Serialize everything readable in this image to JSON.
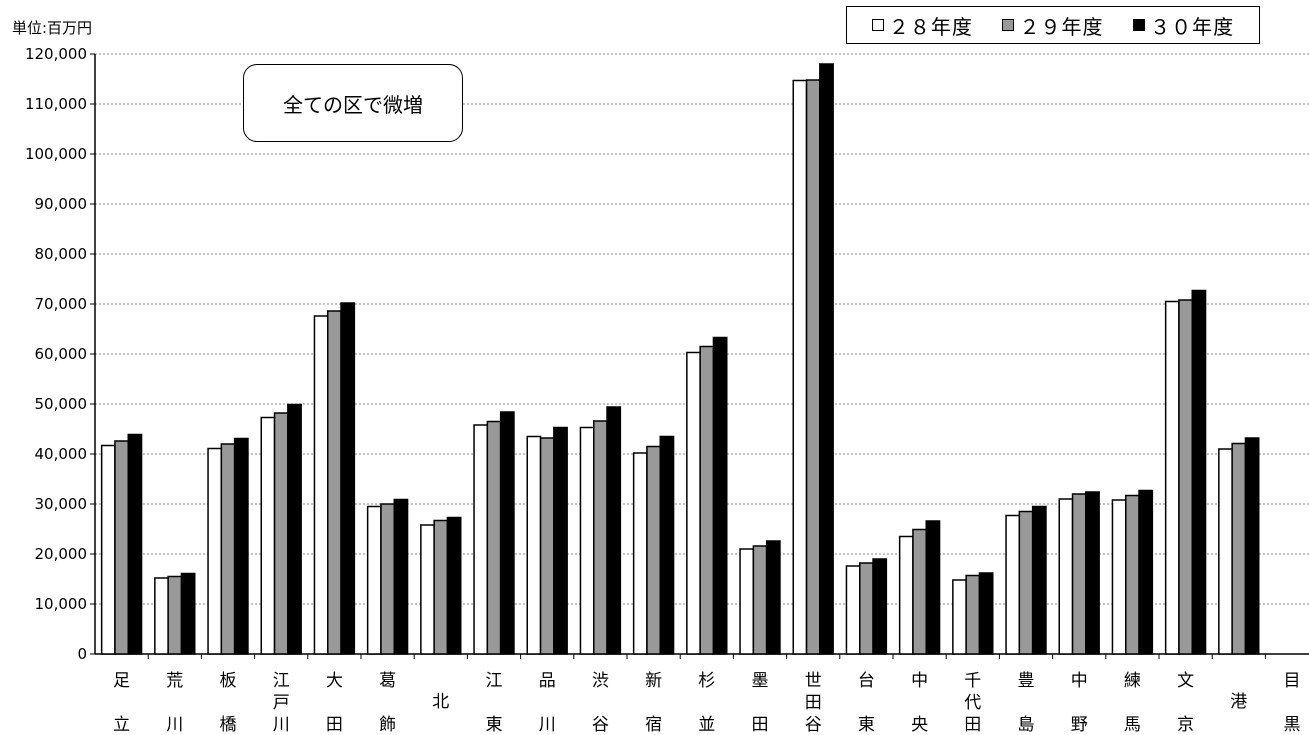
{
  "unit": "単位:百万円",
  "annotation": "全ての区で微増",
  "chart_data": {
    "type": "bar",
    "ylim": [
      0,
      120000
    ],
    "ytick_step": 10000,
    "grid": true,
    "legend_position": "top-right",
    "categories": [
      "足立",
      "荒川",
      "板橋",
      "江戸川",
      "大田",
      "葛飾",
      "北",
      "江東",
      "品川",
      "渋谷",
      "新宿",
      "杉並",
      "墨田",
      "世田谷",
      "台東",
      "中央",
      "千代田",
      "豊島",
      "中野",
      "練馬",
      "文京",
      "港",
      "目黒"
    ],
    "category_label_lines": [
      [
        "足",
        "立"
      ],
      [
        "荒",
        "川"
      ],
      [
        "板",
        "橋"
      ],
      [
        "江",
        "戸",
        "川"
      ],
      [
        "大",
        "田"
      ],
      [
        "葛",
        "飾"
      ],
      [
        "北"
      ],
      [
        "江",
        "東"
      ],
      [
        "品",
        "川"
      ],
      [
        "渋",
        "谷"
      ],
      [
        "新",
        "宿"
      ],
      [
        "杉",
        "並"
      ],
      [
        "墨",
        "田"
      ],
      [
        "世",
        "田",
        "谷"
      ],
      [
        "台",
        "東"
      ],
      [
        "中",
        "央"
      ],
      [
        "千",
        "代",
        "田"
      ],
      [
        "豊",
        "島"
      ],
      [
        "中",
        "野"
      ],
      [
        "練",
        "馬"
      ],
      [
        "文",
        "京"
      ],
      [
        "港"
      ],
      [
        "目",
        "黒"
      ]
    ],
    "series": [
      {
        "name": "２８年度",
        "color": "#ffffff",
        "values": [
          41700,
          15200,
          41100,
          47300,
          67600,
          29500,
          25800,
          45800,
          43500,
          45300,
          40200,
          60300,
          21000,
          114700,
          17600,
          23500,
          14800,
          27700,
          31000,
          30800,
          70500,
          41000,
          0
        ]
      },
      {
        "name": "２９年度",
        "color": "#999999",
        "values": [
          42600,
          15500,
          42000,
          48200,
          68600,
          30000,
          26700,
          46500,
          43200,
          46600,
          41500,
          61500,
          21600,
          114800,
          18200,
          24900,
          15700,
          28500,
          32000,
          31700,
          70800,
          42100,
          0
        ]
      },
      {
        "name": "３０年度",
        "color": "#000000",
        "values": [
          43900,
          16100,
          43100,
          49900,
          70200,
          30900,
          27300,
          48400,
          45300,
          49400,
          43500,
          63300,
          22600,
          118000,
          19000,
          26600,
          16200,
          29500,
          32400,
          32700,
          72700,
          43200,
          0
        ]
      }
    ]
  }
}
